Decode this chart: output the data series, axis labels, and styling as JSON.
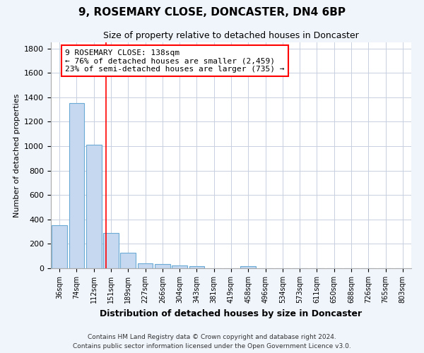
{
  "title": "9, ROSEMARY CLOSE, DONCASTER, DN4 6BP",
  "subtitle": "Size of property relative to detached houses in Doncaster",
  "xlabel": "Distribution of detached houses by size in Doncaster",
  "ylabel": "Number of detached properties",
  "bin_labels": [
    "36sqm",
    "74sqm",
    "112sqm",
    "151sqm",
    "189sqm",
    "227sqm",
    "266sqm",
    "304sqm",
    "343sqm",
    "381sqm",
    "419sqm",
    "458sqm",
    "496sqm",
    "534sqm",
    "573sqm",
    "611sqm",
    "650sqm",
    "688sqm",
    "726sqm",
    "765sqm",
    "803sqm"
  ],
  "bar_values": [
    355,
    1350,
    1010,
    290,
    130,
    42,
    35,
    25,
    20,
    0,
    0,
    20,
    0,
    0,
    0,
    0,
    0,
    0,
    0,
    0,
    0
  ],
  "bar_color": "#c5d8f0",
  "bar_edge_color": "#6aaad4",
  "property_line_x": 2.72,
  "property_line_color": "red",
  "annotation_text": "9 ROSEMARY CLOSE: 138sqm\n← 76% of detached houses are smaller (2,459)\n23% of semi-detached houses are larger (735) →",
  "annotation_box_color": "white",
  "annotation_box_edgecolor": "red",
  "ylim": [
    0,
    1850
  ],
  "yticks": [
    0,
    200,
    400,
    600,
    800,
    1000,
    1200,
    1400,
    1600,
    1800
  ],
  "footer_line1": "Contains HM Land Registry data © Crown copyright and database right 2024.",
  "footer_line2": "Contains public sector information licensed under the Open Government Licence v3.0.",
  "background_color": "#f0f4fb",
  "plot_background": "white",
  "grid_color": "#c8cfe0"
}
